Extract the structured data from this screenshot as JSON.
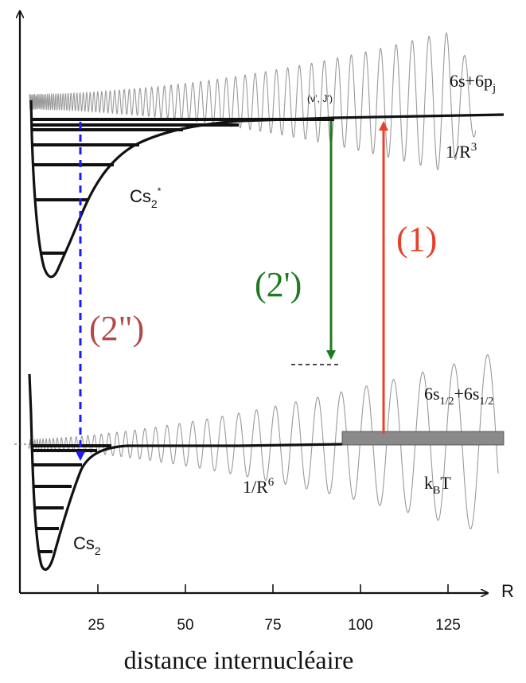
{
  "axis": {
    "x_symbol": "R",
    "ticks": [
      "25",
      "50",
      "75",
      "100",
      "125"
    ],
    "xlabel": "distance internucléaire"
  },
  "labels": {
    "excited_asymptote": {
      "base": "6s+6p",
      "sub": "j"
    },
    "excited_longrange": {
      "base": "1/R",
      "sup": "3"
    },
    "vJ": "(v’, J’)",
    "excited_molecule": {
      "base": "Cs",
      "sub": "2",
      "sup": "*"
    },
    "ground_asymptote": {
      "a": "6s",
      "asub": "1/2",
      "plus": "+6s",
      "bsub": "1/2"
    },
    "ground_longrange": {
      "base": "1/R",
      "sup": "6"
    },
    "thermal": {
      "base": "k",
      "sub": "B",
      "tail": "T"
    },
    "ground_molecule": {
      "base": "Cs",
      "sub": "2"
    }
  },
  "transitions": {
    "photoassociation": {
      "label": "(1)",
      "color": "#e8412b"
    },
    "spontaneous_emission": {
      "label": "(2')",
      "color": "#1f7a1f"
    },
    "vertical_decay": {
      "label": "(2\")",
      "color": "#b24a4a",
      "arrow_color": "#1a1aff"
    }
  },
  "colors": {
    "curve": "#111111",
    "wavefunction": "#9a9a9a",
    "thermal_box": "#8a8a8a"
  }
}
